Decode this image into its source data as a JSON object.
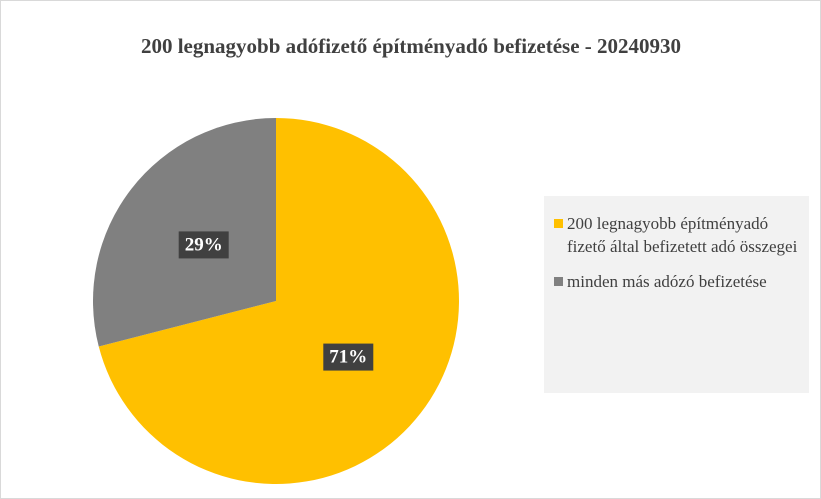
{
  "chart_data": {
    "type": "pie",
    "title": "200 legnagyobb adófizető építményadó befizetése - 20240930",
    "categories": [
      "200 legnagyobb építményadó fizető által befizetett adó összegei",
      "minden más adózó befizetése"
    ],
    "values": [
      71,
      29
    ],
    "value_labels": [
      "71%",
      "29%"
    ],
    "colors": [
      "#FFC000",
      "#808080"
    ],
    "legend": "right"
  }
}
